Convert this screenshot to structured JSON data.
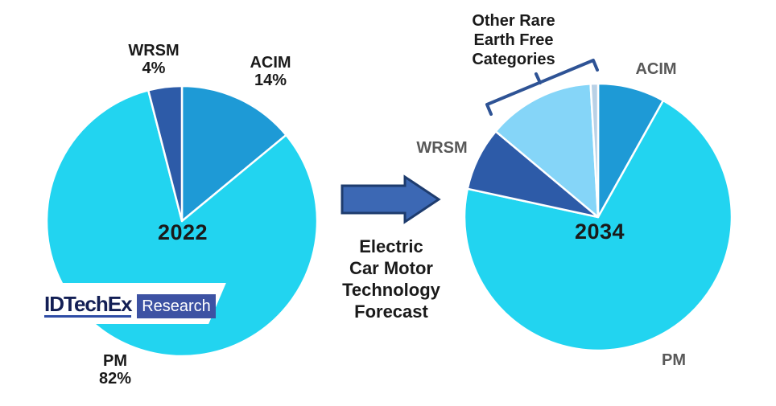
{
  "page": {
    "background": "#ffffff"
  },
  "colors": {
    "page_bg": "#ffffff",
    "pm_cyan": "#22d4f0",
    "acim_blue": "#1e9ad6",
    "wrsm_navy": "#2d5ba8",
    "other_light_blue": "#85d5f8",
    "other_sliver": "#b9d1e6",
    "arrow_fill": "#3c68b4",
    "arrow_outline": "#1e3c6e",
    "bracket_navy": "#2e5395",
    "right_label_gray": "#595959",
    "text_black": "#1a1a1a",
    "logo_text_navy": "#131f55",
    "logo_box_blue": "#3d52a3",
    "logo_underline_blue": "#2e4ca5",
    "slice_border": "#ffffff"
  },
  "left_pie": {
    "year_label": "2022",
    "wrsm_label": "WRSM",
    "wrsm_pct": "4%",
    "acim_label": "ACIM",
    "acim_pct": "14%",
    "pm_label": "PM",
    "pm_pct": "82%"
  },
  "right_pie": {
    "year_label": "2034",
    "acim_label": "ACIM",
    "wrsm_label": "WRSM",
    "pm_label": "PM",
    "other_lines": [
      "Other Rare",
      "Earth Free",
      "Categories"
    ]
  },
  "middle": {
    "caption_lines": [
      "Electric",
      "Car Motor",
      "Technology",
      "Forecast"
    ]
  },
  "logo": {
    "brand": "IDTechEx",
    "suffix": "Research"
  },
  "chart_data": [
    {
      "type": "pie",
      "title": "Electric car motor technology share 2022",
      "center_label": "2022",
      "start_angle_deg": 0,
      "direction": "clockwise",
      "legend_position": "around-slices",
      "slices": [
        {
          "label": "ACIM",
          "value_pct": 14,
          "shown_label": "ACIM 14%",
          "color": "#1e9ad6"
        },
        {
          "label": "PM",
          "value_pct": 82,
          "shown_label": "PM 82%",
          "color": "#22d4f0"
        },
        {
          "label": "WRSM",
          "value_pct": 4,
          "shown_label": "WRSM 4%",
          "color": "#2d5ba8"
        }
      ]
    },
    {
      "type": "pie",
      "title": "Electric car motor technology forecast 2034",
      "center_label": "2034",
      "start_angle_deg": 0,
      "direction": "clockwise",
      "legend_position": "around-slices",
      "slices": [
        {
          "label": "ACIM",
          "value_pct": 8.1,
          "shown_label": "ACIM",
          "color": "#1e9ad6"
        },
        {
          "label": "PM",
          "value_pct": 70.3,
          "shown_label": "PM",
          "color": "#22d4f0"
        },
        {
          "label": "WRSM",
          "value_pct": 7.7,
          "shown_label": "WRSM",
          "color": "#2d5ba8"
        },
        {
          "label": "Other Rare Earth Free Categories (main)",
          "value_pct": 13.0,
          "shown_label": "Other Rare Earth Free Categories",
          "color": "#85d5f8"
        },
        {
          "label": "Other Rare Earth Free Categories (sliver)",
          "value_pct": 0.9,
          "shown_label": "Other Rare Earth Free Categories",
          "color": "#b9d1e6"
        }
      ]
    }
  ]
}
